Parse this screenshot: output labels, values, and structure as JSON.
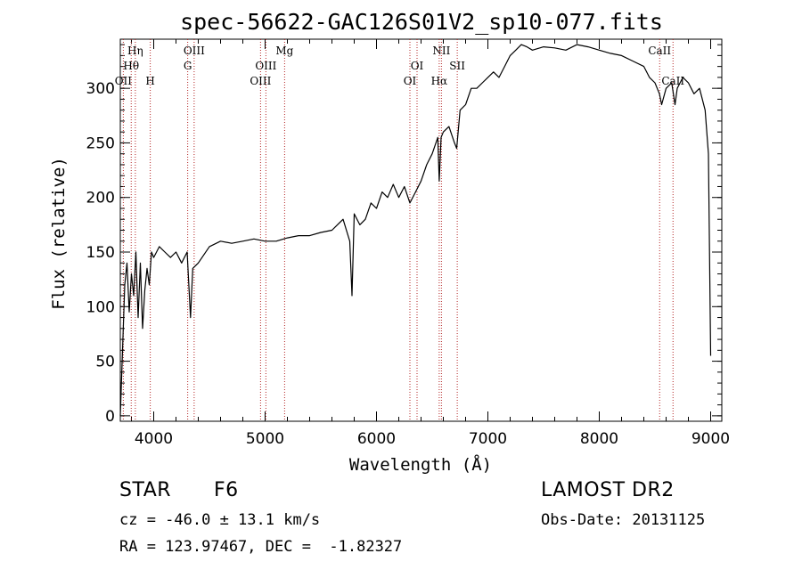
{
  "chart_data": {
    "type": "line",
    "title": "spec-56622-GAC126S01V2_sp10-077.fits",
    "xlabel": "Wavelength (Å)",
    "ylabel": "Flux (relative)",
    "xlim": [
      3700,
      9100
    ],
    "ylim": [
      -5,
      345
    ],
    "xticks": [
      4000,
      5000,
      6000,
      7000,
      8000,
      9000
    ],
    "yticks": [
      0,
      50,
      100,
      150,
      200,
      250,
      300
    ],
    "x_minor_step": 200,
    "y_minor_step": 10,
    "grid": false,
    "series": [
      {
        "color": "#000000",
        "x": [
          3700,
          3720,
          3740,
          3760,
          3780,
          3800,
          3820,
          3840,
          3860,
          3880,
          3900,
          3920,
          3940,
          3960,
          3980,
          4000,
          4050,
          4100,
          4150,
          4200,
          4250,
          4300,
          4330,
          4350,
          4400,
          4500,
          4600,
          4700,
          4800,
          4900,
          5000,
          5100,
          5200,
          5300,
          5400,
          5500,
          5600,
          5700,
          5760,
          5780,
          5800,
          5850,
          5900,
          5950,
          6000,
          6050,
          6100,
          6150,
          6200,
          6250,
          6300,
          6350,
          6400,
          6450,
          6500,
          6550,
          6563,
          6580,
          6600,
          6650,
          6700,
          6720,
          6750,
          6800,
          6850,
          6900,
          6950,
          7000,
          7050,
          7100,
          7150,
          7200,
          7250,
          7300,
          7350,
          7400,
          7500,
          7600,
          7700,
          7800,
          7900,
          8000,
          8100,
          8200,
          8300,
          8400,
          8450,
          8500,
          8540,
          8560,
          8600,
          8650,
          8680,
          8700,
          8750,
          8800,
          8850,
          8900,
          8950,
          8980,
          9000
        ],
        "y": [
          0,
          60,
          120,
          140,
          95,
          130,
          110,
          150,
          90,
          140,
          80,
          115,
          135,
          120,
          150,
          145,
          155,
          150,
          145,
          150,
          140,
          150,
          90,
          135,
          140,
          155,
          160,
          158,
          160,
          162,
          160,
          160,
          163,
          165,
          165,
          168,
          170,
          180,
          160,
          110,
          185,
          175,
          180,
          195,
          190,
          205,
          200,
          212,
          200,
          210,
          195,
          205,
          215,
          230,
          240,
          255,
          215,
          255,
          260,
          265,
          250,
          245,
          280,
          285,
          300,
          300,
          305,
          310,
          315,
          310,
          320,
          330,
          335,
          340,
          338,
          335,
          338,
          337,
          335,
          340,
          338,
          335,
          332,
          330,
          325,
          320,
          310,
          305,
          295,
          285,
          300,
          305,
          285,
          300,
          310,
          305,
          295,
          300,
          280,
          240,
          55
        ]
      }
    ],
    "line_markers": [
      {
        "label": "Hη",
        "x": 3835,
        "row": 0
      },
      {
        "label": "Hθ",
        "x": 3798,
        "row": 1
      },
      {
        "label": "OII",
        "x": 3727,
        "row": 2
      },
      {
        "label": "H",
        "x": 3969,
        "row": 2
      },
      {
        "label": "OIII",
        "x": 4363,
        "row": 0
      },
      {
        "label": "G",
        "x": 4305,
        "row": 1
      },
      {
        "label": "Mg",
        "x": 5175,
        "row": 0
      },
      {
        "label": "OIII",
        "x": 5007,
        "row": 1
      },
      {
        "label": "OIII",
        "x": 4959,
        "row": 2
      },
      {
        "label": "NII",
        "x": 6583,
        "row": 0
      },
      {
        "label": "OI",
        "x": 6364,
        "row": 1
      },
      {
        "label": "SII",
        "x": 6725,
        "row": 1
      },
      {
        "label": "OI",
        "x": 6300,
        "row": 2
      },
      {
        "label": "Hα",
        "x": 6563,
        "row": 2
      },
      {
        "label": "CaII",
        "x": 8542,
        "row": 0
      },
      {
        "label": "CaII",
        "x": 8662,
        "row": 2
      }
    ]
  },
  "info": {
    "class": "STAR",
    "subclass": "F6",
    "survey": "LAMOST DR2",
    "cz": "cz = -46.0 ± 13.1 km/s",
    "obs_date": "Obs-Date: 20131125",
    "coords": "RA = 123.97467, DEC =  -1.82327"
  }
}
